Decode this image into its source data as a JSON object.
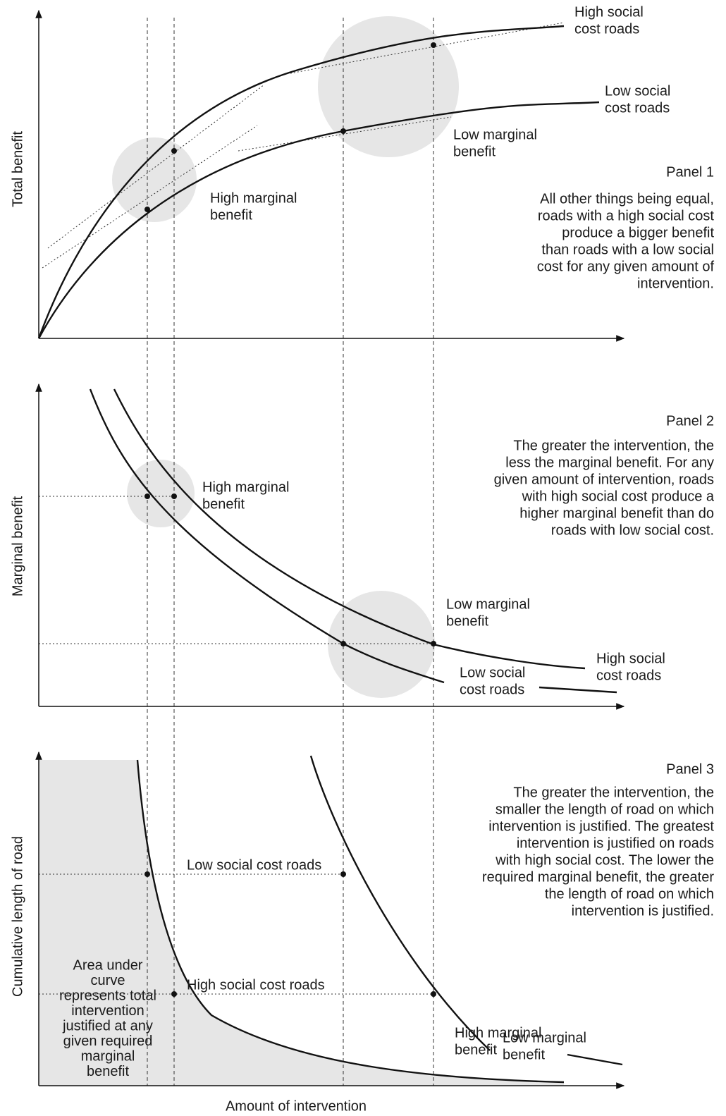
{
  "panels": [
    {
      "title": "Panel 1",
      "description": [
        "All other things being equal,",
        "roads with a high social cost",
        "produce a bigger benefit",
        "than roads with a low social",
        "cost for any given amount of",
        "intervention."
      ],
      "y_axis_label": "Total benefit",
      "labels": [
        [
          "High social",
          "cost roads"
        ],
        [
          "Low social",
          "cost roads"
        ],
        [
          "Low marginal",
          "benefit"
        ],
        [
          "High marginal",
          "benefit"
        ]
      ]
    },
    {
      "title": "Panel 2",
      "description": [
        "The greater the intervention, the",
        "less the marginal benefit. For any",
        "given amount of intervention, roads",
        "with high social cost produce a",
        "higher marginal benefit than do",
        "roads with low social cost."
      ],
      "y_axis_label": "Marginal benefit",
      "labels": [
        [
          "High marginal",
          "benefit"
        ],
        [
          "Low marginal",
          "benefit"
        ],
        [
          "High social",
          "cost roads"
        ],
        [
          "Low social",
          "cost roads"
        ]
      ]
    },
    {
      "title": "Panel 3",
      "description": [
        "The greater the intervention, the",
        "smaller the length of road on which",
        "intervention is justified. The greatest",
        "intervention is justified on roads",
        "with high social cost. The lower the",
        "required marginal benefit, the greater",
        "the length of road on which",
        "intervention is justified."
      ],
      "y_axis_label": "Cumulative length of road",
      "labels": [
        [
          "Low social cost roads"
        ],
        [
          "High social cost roads"
        ],
        [
          "Low marginal",
          "benefit"
        ],
        [
          "High marginal",
          "benefit"
        ]
      ]
    }
  ],
  "area_note": [
    "Area under",
    "curve",
    "represents total",
    "intervention",
    "justified at any",
    "given required",
    "marginal",
    "benefit"
  ],
  "x_axis_label": "Amount of intervention"
}
